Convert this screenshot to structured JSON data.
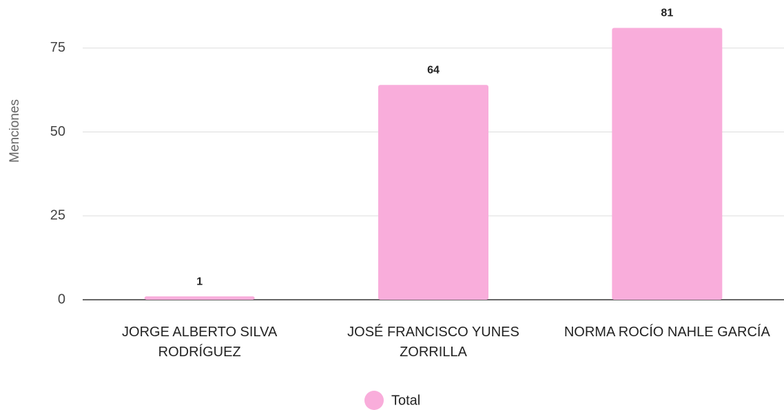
{
  "chart_data": {
    "type": "bar",
    "y_label": "Menciones",
    "categories": [
      "JORGE ALBERTO SILVA RODRÍGUEZ",
      "JOSÉ FRANCISCO YUNES ZORRILLA",
      "NORMA ROCÍO NAHLE GARCÍA"
    ],
    "series": [
      {
        "name": "Total",
        "color": "#f9addb",
        "values": [
          1,
          64,
          81
        ]
      }
    ],
    "ylim": [
      0,
      85
    ],
    "yticks": [
      0,
      25,
      50,
      75
    ],
    "grid": true,
    "legend": "bottom"
  }
}
